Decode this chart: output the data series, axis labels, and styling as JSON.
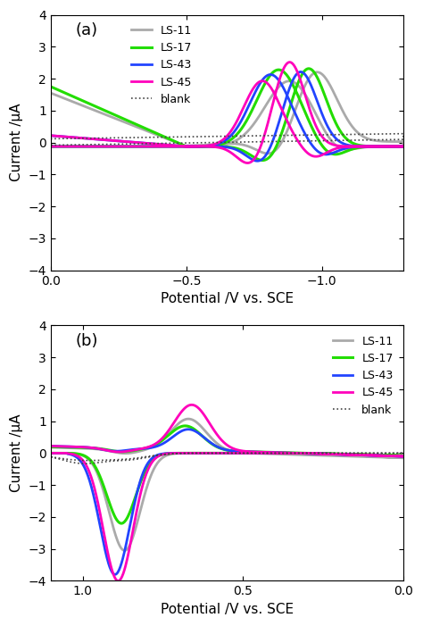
{
  "panel_a": {
    "label": "(a)",
    "xlabel": "Potential /V vs. SCE",
    "ylabel": "Current /μA",
    "xlim": [
      0.0,
      -1.3
    ],
    "ylim": [
      -4.0,
      4.0
    ],
    "xticks": [
      0.0,
      -0.5,
      -1.0
    ],
    "yticks": [
      -4.0,
      -3.0,
      -2.0,
      -1.0,
      0.0,
      1.0,
      2.0,
      3.0,
      4.0
    ]
  },
  "panel_b": {
    "label": "(b)",
    "xlabel": "Potential /V vs. SCE",
    "ylabel": "Current /μA",
    "xlim": [
      1.1,
      0.0
    ],
    "ylim": [
      -4.0,
      4.0
    ],
    "xticks": [
      1.0,
      0.5,
      0.0
    ],
    "yticks": [
      -4.0,
      -3.0,
      -2.0,
      -1.0,
      0.0,
      1.0,
      2.0,
      3.0,
      4.0
    ]
  },
  "colors": {
    "LS-11": "#aaaaaa",
    "LS-17": "#22dd00",
    "LS-43": "#2244ff",
    "LS-45": "#ff00bb",
    "blank": "#444444"
  },
  "lw": {
    "LS-11": 2.0,
    "LS-17": 2.2,
    "LS-43": 2.0,
    "LS-45": 2.0,
    "blank": 1.2
  },
  "bg_color": "#ffffff",
  "tick_fontsize": 10,
  "label_fontsize": 11
}
